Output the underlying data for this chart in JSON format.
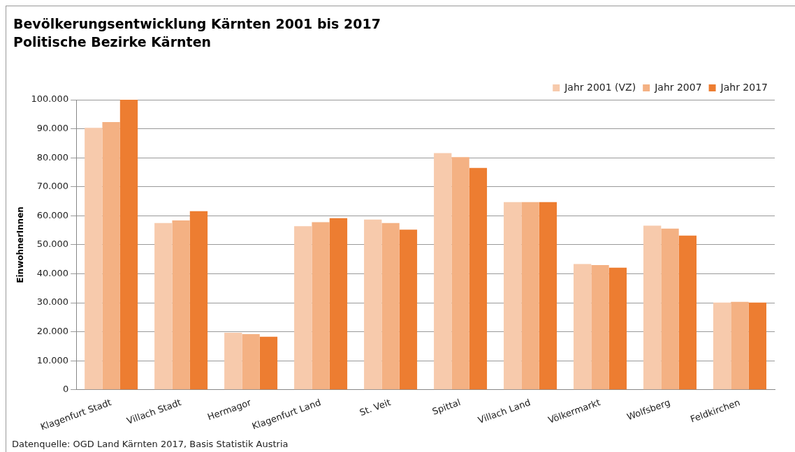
{
  "chart_data": {
    "type": "bar",
    "title": "Bevölkerungsentwicklung Kärnten 2001 bis 2017",
    "subtitle": "Politische Bezirke Kärnten",
    "ylabel": "EinwohnerInnen",
    "categories": [
      "Klagenfurt Stadt",
      "Villach Stadt",
      "Hermagor",
      "Klagenfurt Land",
      "St. Veit",
      "Spittal",
      "Villach Land",
      "Völkermarkt",
      "Wolfsberg",
      "Feldkirchen"
    ],
    "series": [
      {
        "name": "Jahr 2001 (VZ)",
        "color": "#f7caac",
        "values": [
          90300,
          57500,
          19700,
          56400,
          58700,
          81600,
          64700,
          43400,
          56600,
          30100
        ]
      },
      {
        "name": "Jahr 2007",
        "color": "#f4b183",
        "values": [
          92300,
          58400,
          19200,
          57800,
          57500,
          80200,
          64700,
          43000,
          55600,
          30300
        ]
      },
      {
        "name": "Jahr 2017",
        "color": "#ed7d31",
        "values": [
          100000,
          61600,
          18300,
          59200,
          55200,
          76500,
          64700,
          42100,
          53200,
          30100
        ]
      }
    ],
    "ylim": [
      0,
      100000
    ],
    "yticks": [
      0,
      {
        "value": 10000,
        "label": "10.000"
      },
      {
        "value": 20000,
        "label": "20.000"
      },
      {
        "value": 30000,
        "label": "30.000"
      },
      {
        "value": 40000,
        "label": "40.000"
      },
      {
        "value": 50000,
        "label": "50.000"
      },
      {
        "value": 60000,
        "label": "60.000"
      },
      {
        "value": 70000,
        "label": "70.000"
      },
      {
        "value": 80000,
        "label": "80.000"
      },
      {
        "value": 90000,
        "label": "90.000"
      },
      {
        "value": 100000,
        "label": "100.000"
      }
    ],
    "grid": "y",
    "legend": "top right",
    "annotations": [
      "Datenquelle: OGD Land Kärnten 2017, Basis Statistik Austria"
    ]
  }
}
